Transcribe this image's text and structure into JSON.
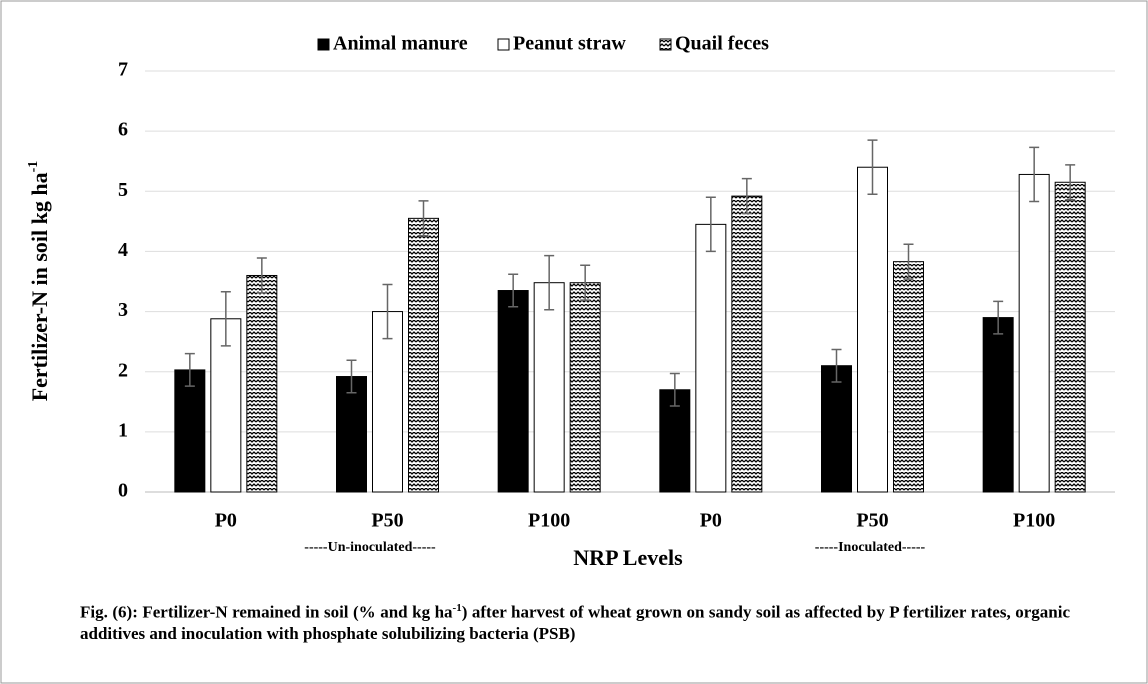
{
  "chart_data": {
    "type": "bar",
    "legend": [
      "Animal manure",
      "Peanut straw",
      "Quail feces"
    ],
    "ylabel": [
      "Fertilizer-N in soil kg ha",
      "-1"
    ],
    "xlabel": "NRP Levels",
    "annotations": [
      "-----Un-inoculated-----",
      "-----Inoculated-----"
    ],
    "categories": [
      "P0",
      "P50",
      "P100",
      "P0",
      "P50",
      "P100"
    ],
    "series": [
      {
        "name": "Animal manure",
        "color": "#000000",
        "fill_style": "solid",
        "values": [
          2.03,
          1.92,
          3.35,
          1.7,
          2.1,
          2.9
        ],
        "errors": [
          0.27,
          0.27,
          0.27,
          0.27,
          0.27,
          0.27
        ]
      },
      {
        "name": "Peanut straw",
        "color": "#ffffff",
        "fill_style": "solid",
        "values": [
          2.88,
          3.0,
          3.48,
          4.45,
          5.4,
          5.28
        ],
        "errors": [
          0.45,
          0.45,
          0.45,
          0.45,
          0.45,
          0.45
        ]
      },
      {
        "name": "Quail feces",
        "color": "#000000",
        "fill_style": "pattern",
        "values": [
          3.6,
          4.55,
          3.48,
          4.92,
          3.83,
          5.15
        ],
        "errors": [
          0.29,
          0.29,
          0.29,
          0.29,
          0.29,
          0.29
        ]
      }
    ],
    "ylim": [
      0,
      7
    ],
    "yticks": [
      0,
      1,
      2,
      3,
      4,
      5,
      6,
      7
    ],
    "grid": true,
    "legend_position": "top",
    "caption": [
      "Fig. (6): Fertilizer-N remained in soil (% and kg ha",
      "-1",
      ") after harvest of wheat grown on sandy soil as affected by P fertilizer rates, organic additives and inoculation with phosphate solubilizing bacteria (PSB)"
    ]
  }
}
